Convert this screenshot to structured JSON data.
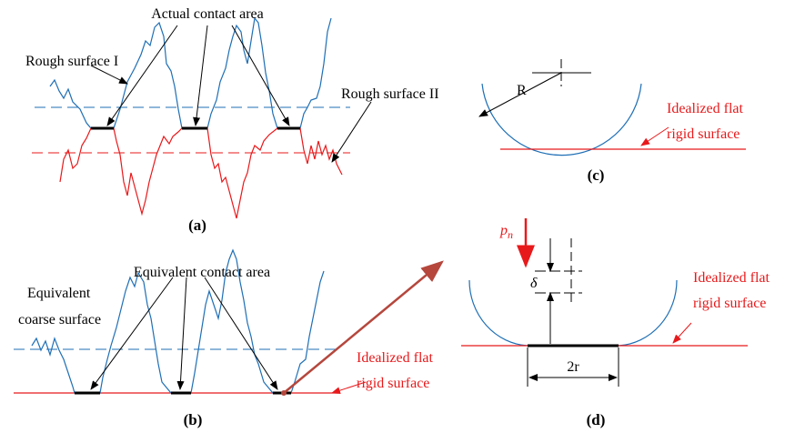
{
  "panel_a": {
    "caption": "(a)",
    "contact_label": "Actual contact area",
    "upper_label": "Rough surface I",
    "lower_label": "Rough surface II"
  },
  "panel_b": {
    "caption": "(b)",
    "contact_label": "Equivalent contact area",
    "surface_label": [
      "Equivalent",
      "coarse surface"
    ],
    "flat_label": [
      "Idealized flat",
      "rigid surface"
    ]
  },
  "panel_c": {
    "caption": "(c)",
    "radius_label": "R",
    "flat_label": [
      "Idealized flat",
      "rigid surface"
    ]
  },
  "panel_d": {
    "caption": "(d)",
    "load_symbol": "p",
    "load_subscript": "n",
    "depth_label": "δ",
    "width_label": "2r",
    "flat_label": [
      "Idealized flat",
      "rigid surface"
    ]
  }
}
